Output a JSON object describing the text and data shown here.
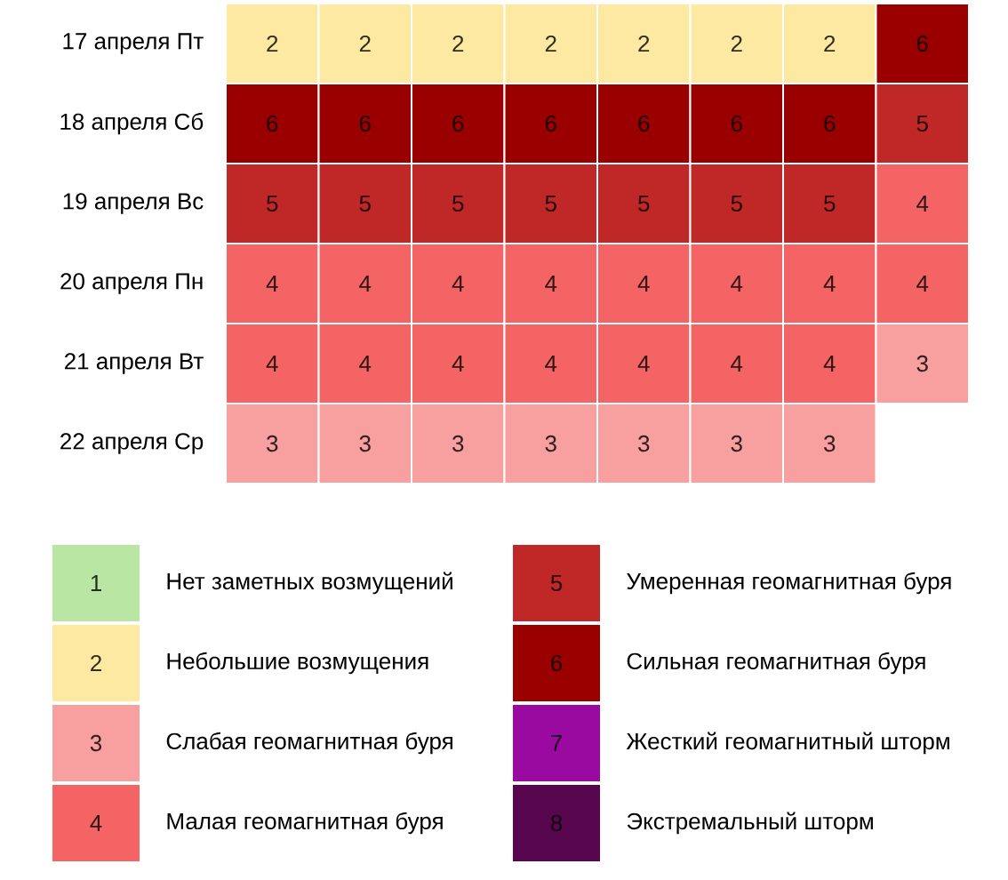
{
  "chart_data": [
    {
      "type": "heatmap",
      "categories": [
        null,
        null,
        null,
        null,
        null,
        null,
        null,
        null
      ],
      "y_categories": [
        "17 апреля Пт",
        "18 апреля Сб",
        "19 апреля Вс",
        "20 апреля Пн",
        "21 апреля Вт",
        "22 апреля Ср"
      ],
      "cells": [
        [
          2,
          2,
          2,
          2,
          2,
          2,
          2,
          6
        ],
        [
          6,
          6,
          6,
          6,
          6,
          6,
          6,
          5
        ],
        [
          5,
          5,
          5,
          5,
          5,
          5,
          5,
          4
        ],
        [
          4,
          4,
          4,
          4,
          4,
          4,
          4,
          4
        ],
        [
          4,
          4,
          4,
          4,
          4,
          4,
          4,
          3
        ],
        [
          3,
          3,
          3,
          3,
          3,
          3,
          3,
          null
        ]
      ],
      "data_labels": true
    },
    {
      "type": "other",
      "categories": [
        "Нет заметных возмущений",
        "Небольшие возмущения",
        "Слабая геомагнитная буря",
        "Малая геомагнитная буря",
        "Умеренная геомагнитная буря",
        "Сильная геомагнитная буря",
        "Жесткий геомагнитный шторм",
        "Экстремальный шторм"
      ],
      "values": [
        1,
        2,
        3,
        4,
        5,
        6,
        7,
        8
      ],
      "data_labels": true,
      "colors": [
        "#b9e6a3",
        "#fde9a2",
        "#f8a0a0",
        "#f56464",
        "#c02828",
        "#9a0000",
        "#9a0aa0",
        "#58064e"
      ]
    }
  ]
}
